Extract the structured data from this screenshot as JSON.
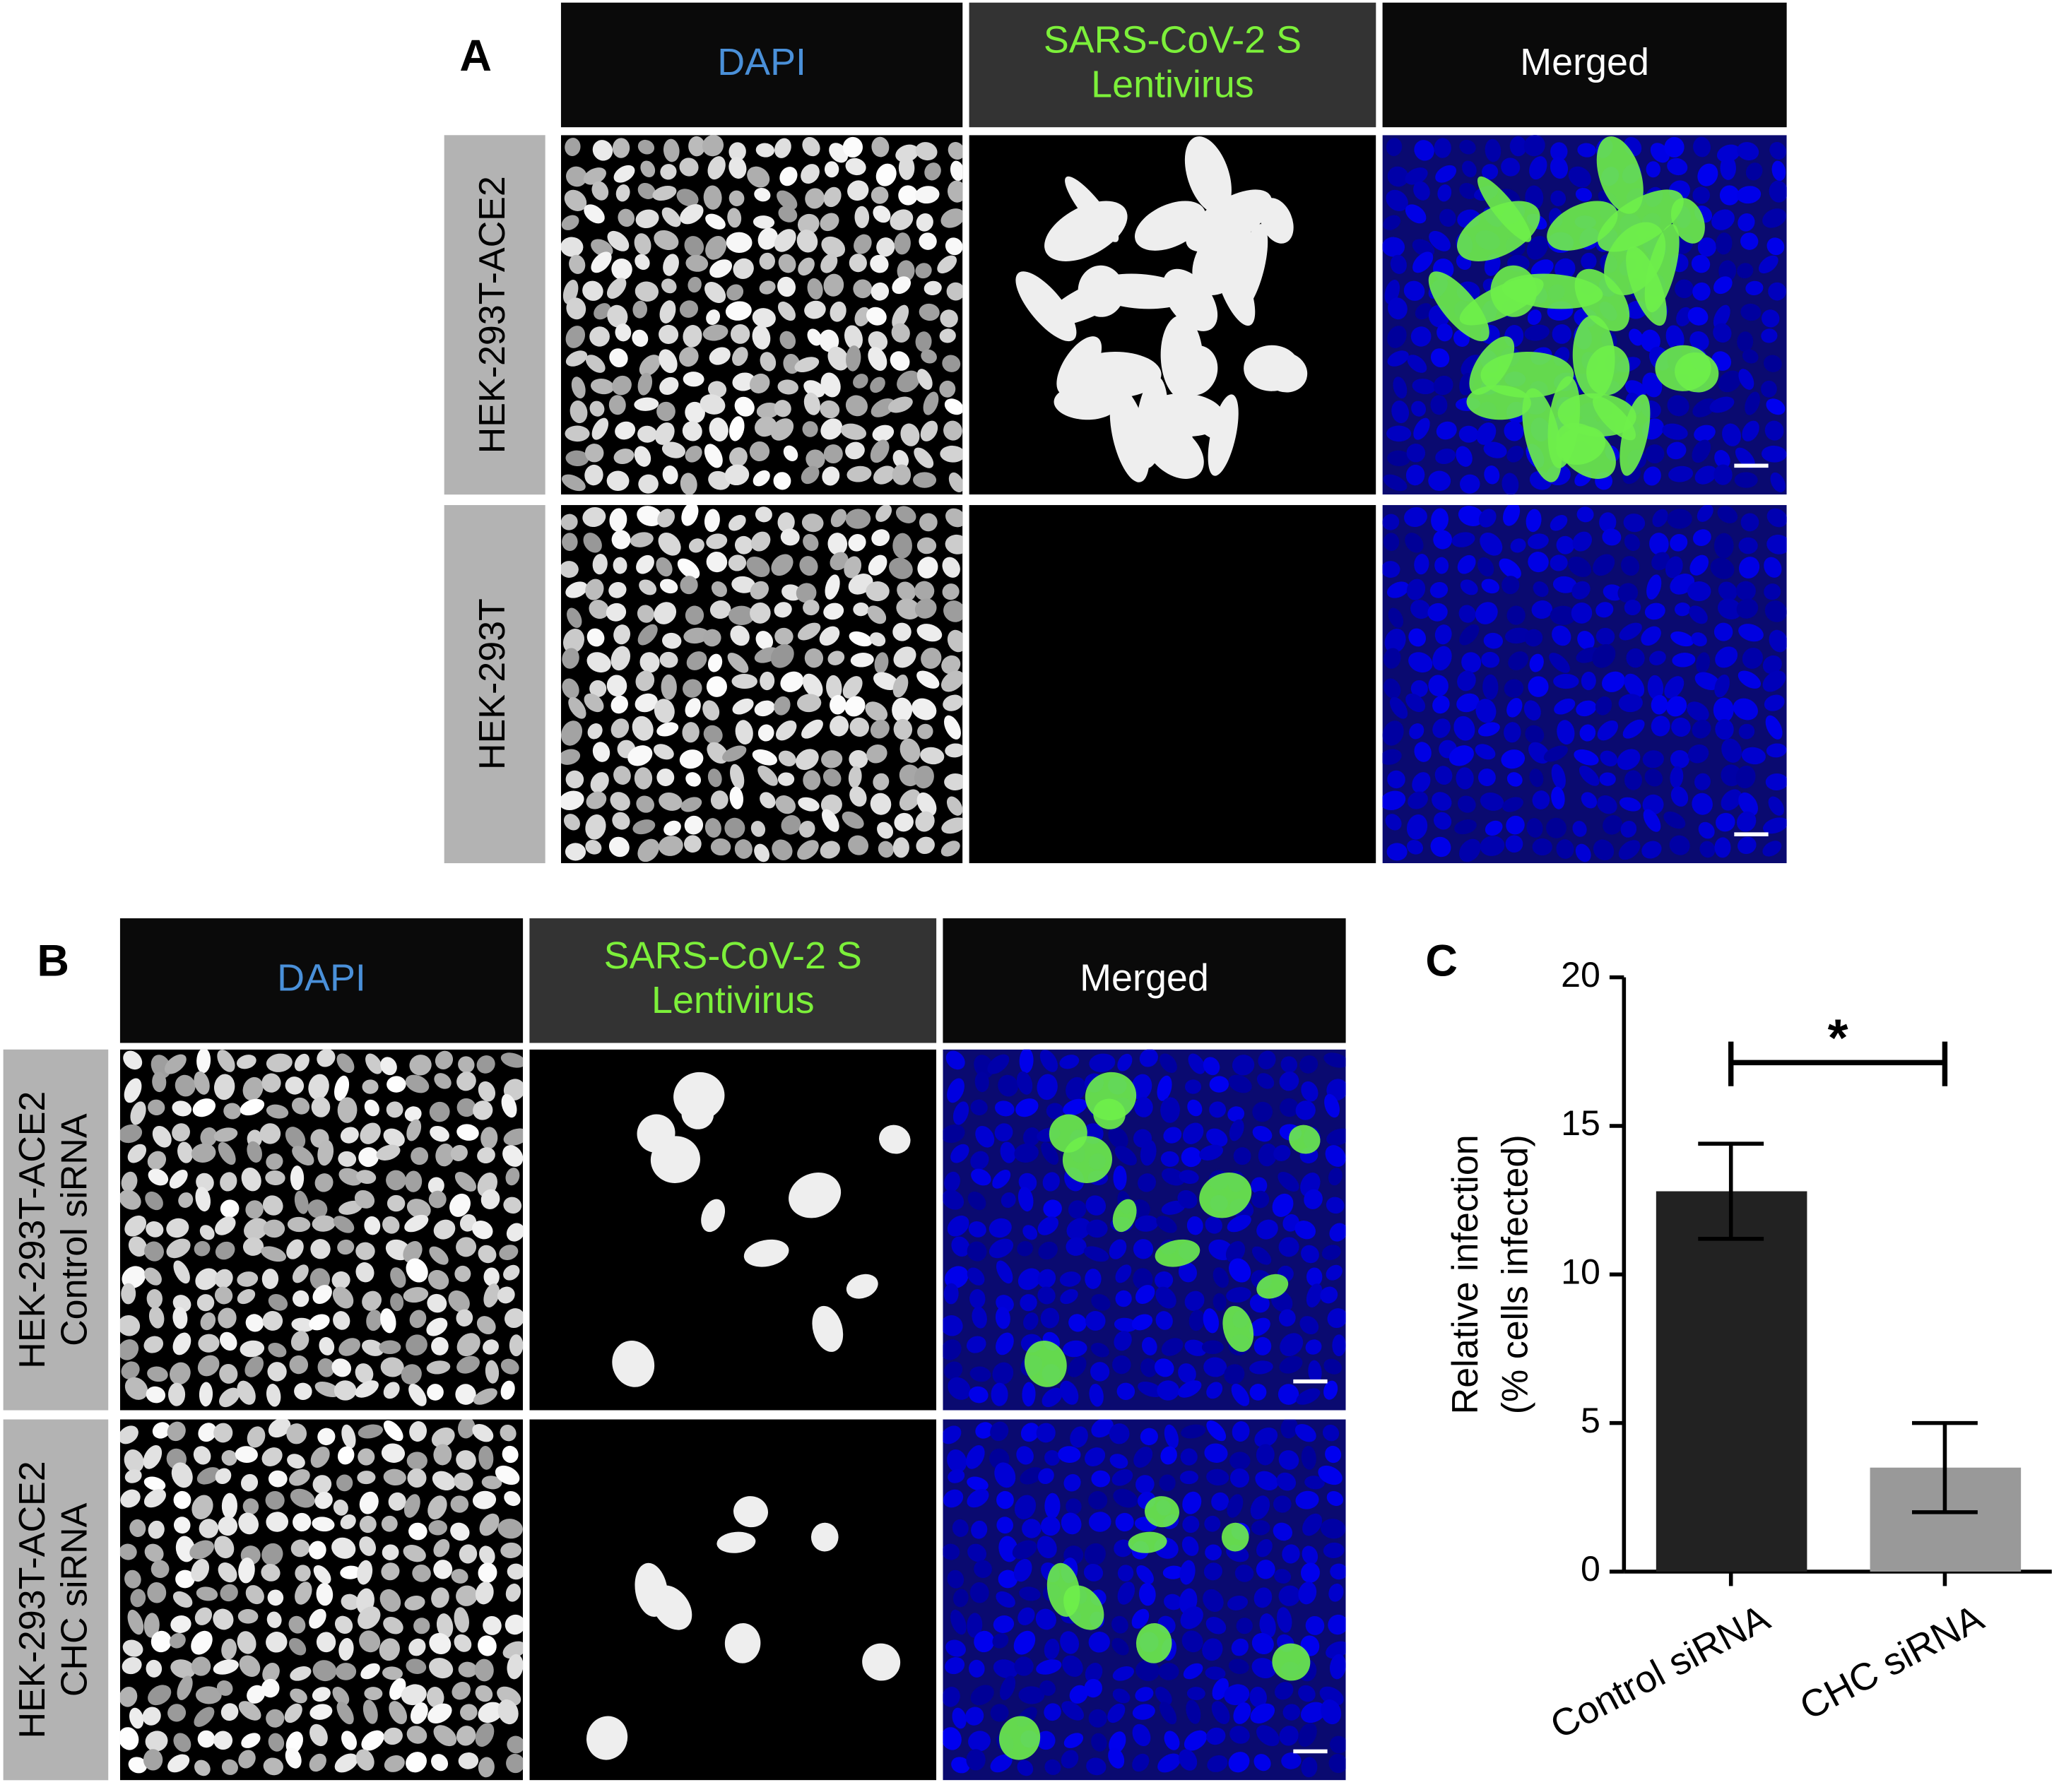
{
  "panel_a": {
    "label": "A",
    "columns": [
      [
        "DAPI"
      ],
      [
        "SARS-CoV-2 S",
        "Lentivirus"
      ],
      [
        "Merged"
      ]
    ],
    "rows": [
      [
        "HEK-293T-ACE2"
      ],
      [
        "HEK-293T"
      ]
    ]
  },
  "panel_b": {
    "label": "B",
    "columns": [
      [
        "DAPI"
      ],
      [
        "SARS-CoV-2 S",
        "Lentivirus"
      ],
      [
        "Merged"
      ]
    ],
    "rows": [
      [
        "HEK-293T-ACE2",
        "Control siRNA"
      ],
      [
        "HEK-293T-ACE2",
        "CHC siRNA"
      ]
    ]
  },
  "chart_data": {
    "type": "bar",
    "label": "C",
    "y_label": [
      "Relative infection",
      "(% cells infected)"
    ],
    "categories": [
      "Control siRNA",
      "CHC siRNA"
    ],
    "values": [
      12.8,
      3.5
    ],
    "errors": [
      1.6,
      1.5
    ],
    "colors": [
      "#222222",
      "#999999"
    ],
    "ylim": [
      0,
      20
    ],
    "yticks": [
      0,
      5,
      10,
      15,
      20
    ],
    "annotation": "*"
  }
}
